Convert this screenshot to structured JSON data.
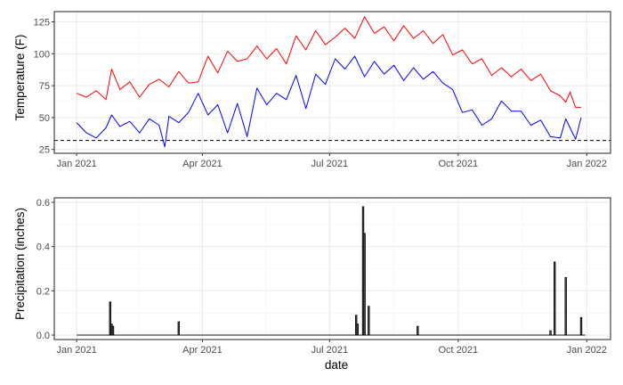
{
  "chart_data": [
    {
      "type": "line",
      "title": "",
      "xlabel": "",
      "ylabel": "Temperature (F)",
      "xlim": [
        "2020-12-16",
        "2022-01-18"
      ],
      "ylim": [
        22,
        133
      ],
      "x_ticks": [
        {
          "date": "2021-01-01",
          "label": "Jan 2021"
        },
        {
          "date": "2021-04-01",
          "label": "Apr 2021"
        },
        {
          "date": "2021-07-01",
          "label": "Jul 2021"
        },
        {
          "date": "2021-10-01",
          "label": "Oct 2021"
        },
        {
          "date": "2022-01-01",
          "label": "Jan 2022"
        }
      ],
      "y_ticks": [
        25,
        50,
        75,
        100,
        125
      ],
      "grid": true,
      "reference_line": {
        "y": 32,
        "style": "dashed",
        "color": "#000000"
      },
      "series": [
        {
          "color": "#ff0000",
          "points": [
            [
              "2021-01-01",
              69
            ],
            [
              "2021-01-08",
              66
            ],
            [
              "2021-01-15",
              71
            ],
            [
              "2021-01-22",
              64
            ],
            [
              "2021-01-26",
              88
            ],
            [
              "2021-02-01",
              72
            ],
            [
              "2021-02-08",
              78
            ],
            [
              "2021-02-15",
              66
            ],
            [
              "2021-02-22",
              76
            ],
            [
              "2021-03-01",
              80
            ],
            [
              "2021-03-08",
              74
            ],
            [
              "2021-03-15",
              86
            ],
            [
              "2021-03-22",
              77
            ],
            [
              "2021-03-29",
              78
            ],
            [
              "2021-04-05",
              98
            ],
            [
              "2021-04-12",
              85
            ],
            [
              "2021-04-19",
              102
            ],
            [
              "2021-04-26",
              94
            ],
            [
              "2021-05-03",
              96
            ],
            [
              "2021-05-10",
              106
            ],
            [
              "2021-05-17",
              96
            ],
            [
              "2021-05-24",
              104
            ],
            [
              "2021-05-31",
              92
            ],
            [
              "2021-06-07",
              114
            ],
            [
              "2021-06-14",
              103
            ],
            [
              "2021-06-21",
              118
            ],
            [
              "2021-06-28",
              107
            ],
            [
              "2021-07-05",
              113
            ],
            [
              "2021-07-12",
              120
            ],
            [
              "2021-07-19",
              112
            ],
            [
              "2021-07-26",
              129
            ],
            [
              "2021-08-02",
              116
            ],
            [
              "2021-08-09",
              121
            ],
            [
              "2021-08-16",
              110
            ],
            [
              "2021-08-23",
              122
            ],
            [
              "2021-08-30",
              112
            ],
            [
              "2021-09-06",
              118
            ],
            [
              "2021-09-13",
              108
            ],
            [
              "2021-09-20",
              115
            ],
            [
              "2021-09-27",
              99
            ],
            [
              "2021-10-04",
              103
            ],
            [
              "2021-10-11",
              92
            ],
            [
              "2021-10-18",
              96
            ],
            [
              "2021-10-25",
              83
            ],
            [
              "2021-11-01",
              89
            ],
            [
              "2021-11-08",
              82
            ],
            [
              "2021-11-15",
              88
            ],
            [
              "2021-11-22",
              79
            ],
            [
              "2021-11-29",
              84
            ],
            [
              "2021-12-06",
              71
            ],
            [
              "2021-12-13",
              67
            ],
            [
              "2021-12-17",
              62
            ],
            [
              "2021-12-20",
              70
            ],
            [
              "2021-12-24",
              58
            ],
            [
              "2021-12-28",
              58
            ]
          ]
        },
        {
          "color": "#0000ff",
          "points": [
            [
              "2021-01-01",
              46
            ],
            [
              "2021-01-08",
              38
            ],
            [
              "2021-01-15",
              34
            ],
            [
              "2021-01-22",
              42
            ],
            [
              "2021-01-26",
              52
            ],
            [
              "2021-02-01",
              43
            ],
            [
              "2021-02-08",
              47
            ],
            [
              "2021-02-15",
              38
            ],
            [
              "2021-02-22",
              49
            ],
            [
              "2021-03-01",
              44
            ],
            [
              "2021-03-05",
              27
            ],
            [
              "2021-03-08",
              51
            ],
            [
              "2021-03-15",
              46
            ],
            [
              "2021-03-22",
              54
            ],
            [
              "2021-03-29",
              69
            ],
            [
              "2021-04-05",
              52
            ],
            [
              "2021-04-12",
              60
            ],
            [
              "2021-04-19",
              38
            ],
            [
              "2021-04-26",
              61
            ],
            [
              "2021-05-03",
              35
            ],
            [
              "2021-05-10",
              73
            ],
            [
              "2021-05-17",
              60
            ],
            [
              "2021-05-24",
              69
            ],
            [
              "2021-05-31",
              64
            ],
            [
              "2021-06-07",
              83
            ],
            [
              "2021-06-14",
              57
            ],
            [
              "2021-06-21",
              84
            ],
            [
              "2021-06-28",
              76
            ],
            [
              "2021-07-05",
              96
            ],
            [
              "2021-07-12",
              88
            ],
            [
              "2021-07-19",
              98
            ],
            [
              "2021-07-26",
              82
            ],
            [
              "2021-08-02",
              94
            ],
            [
              "2021-08-09",
              84
            ],
            [
              "2021-08-16",
              91
            ],
            [
              "2021-08-23",
              79
            ],
            [
              "2021-08-30",
              89
            ],
            [
              "2021-09-06",
              80
            ],
            [
              "2021-09-13",
              86
            ],
            [
              "2021-09-20",
              77
            ],
            [
              "2021-09-27",
              72
            ],
            [
              "2021-10-04",
              54
            ],
            [
              "2021-10-11",
              56
            ],
            [
              "2021-10-18",
              44
            ],
            [
              "2021-10-25",
              49
            ],
            [
              "2021-11-01",
              63
            ],
            [
              "2021-11-08",
              55
            ],
            [
              "2021-11-15",
              55
            ],
            [
              "2021-11-22",
              44
            ],
            [
              "2021-11-29",
              48
            ],
            [
              "2021-12-06",
              35
            ],
            [
              "2021-12-13",
              34
            ],
            [
              "2021-12-17",
              49
            ],
            [
              "2021-12-20",
              42
            ],
            [
              "2021-12-24",
              33
            ],
            [
              "2021-12-28",
              50
            ]
          ]
        }
      ]
    },
    {
      "type": "bar",
      "title": "",
      "xlabel": "date",
      "ylabel": "Precipitation (inches)",
      "xlim": [
        "2020-12-16",
        "2022-01-18"
      ],
      "ylim": [
        -0.02,
        0.62
      ],
      "x_ticks": [
        {
          "date": "2021-01-01",
          "label": "Jan 2021"
        },
        {
          "date": "2021-04-01",
          "label": "Apr 2021"
        },
        {
          "date": "2021-07-01",
          "label": "Jul 2021"
        },
        {
          "date": "2021-10-01",
          "label": "Oct 2021"
        },
        {
          "date": "2022-01-01",
          "label": "Jan 2022"
        }
      ],
      "y_ticks": [
        {
          "value": 0,
          "label": "0.0"
        },
        {
          "value": 0.2,
          "label": "0.2"
        },
        {
          "value": 0.4,
          "label": "0.4"
        },
        {
          "value": 0.6,
          "label": "0.6"
        }
      ],
      "grid": true,
      "baseline": {
        "start": "2021-01-01",
        "end": "2021-12-31"
      },
      "bars": [
        {
          "date": "2021-01-25",
          "value": 0.15
        },
        {
          "date": "2021-01-26",
          "value": 0.05
        },
        {
          "date": "2021-01-27",
          "value": 0.04
        },
        {
          "date": "2021-03-15",
          "value": 0.06
        },
        {
          "date": "2021-07-20",
          "value": 0.09
        },
        {
          "date": "2021-07-21",
          "value": 0.05
        },
        {
          "date": "2021-07-25",
          "value": 0.58
        },
        {
          "date": "2021-07-26",
          "value": 0.46
        },
        {
          "date": "2021-07-29",
          "value": 0.13
        },
        {
          "date": "2021-09-02",
          "value": 0.04
        },
        {
          "date": "2021-12-06",
          "value": 0.02
        },
        {
          "date": "2021-12-09",
          "value": 0.33
        },
        {
          "date": "2021-12-17",
          "value": 0.26
        },
        {
          "date": "2021-12-28",
          "value": 0.08
        }
      ]
    }
  ]
}
